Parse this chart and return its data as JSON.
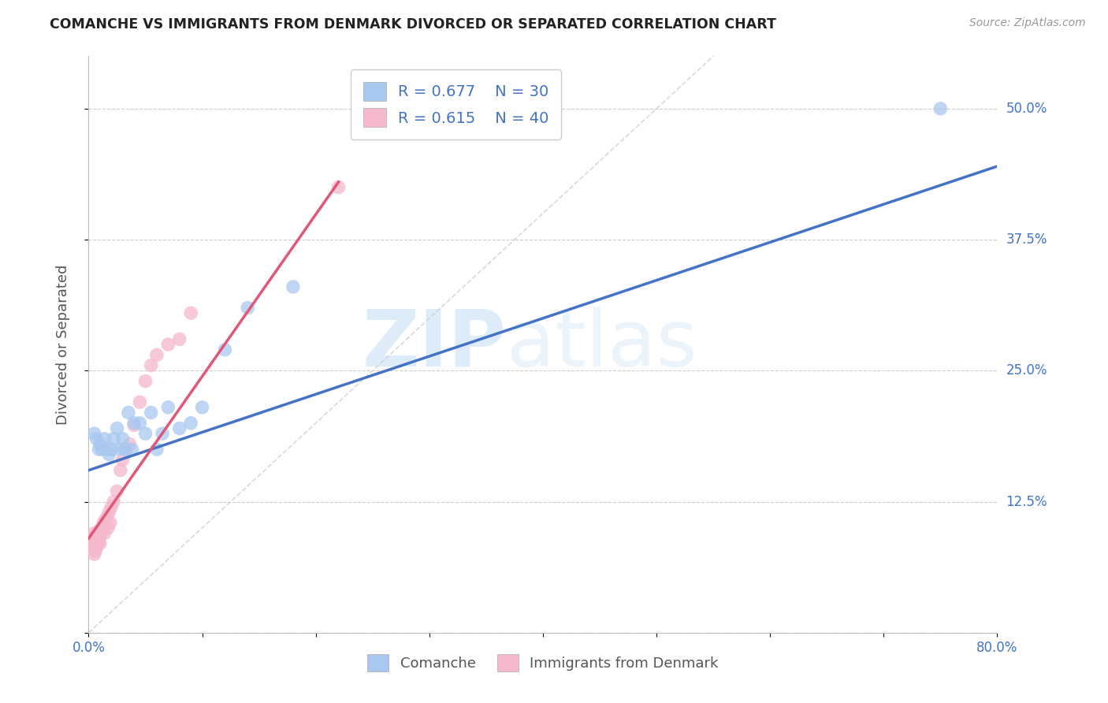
{
  "title": "COMANCHE VS IMMIGRANTS FROM DENMARK DIVORCED OR SEPARATED CORRELATION CHART",
  "source": "Source: ZipAtlas.com",
  "ylabel": "Divorced or Separated",
  "xlabel_comanche": "Comanche",
  "xlabel_denmark": "Immigrants from Denmark",
  "xlim": [
    0.0,
    0.8
  ],
  "ylim": [
    0.0,
    0.55
  ],
  "ytick_vals": [
    0.0,
    0.125,
    0.25,
    0.375,
    0.5
  ],
  "ytick_labels": [
    "",
    "12.5%",
    "25.0%",
    "37.5%",
    "50.0%"
  ],
  "xtick_vals": [
    0.0,
    0.1,
    0.2,
    0.3,
    0.4,
    0.5,
    0.6,
    0.7,
    0.8
  ],
  "xtick_labels": [
    "0.0%",
    "",
    "",
    "",
    "",
    "",
    "",
    "",
    "80.0%"
  ],
  "color_blue": "#A8C8F0",
  "color_pink": "#F5B8CC",
  "color_blue_line": "#4472C4",
  "color_pink_line": "#E05878",
  "color_diag": "#D0D0D0",
  "watermark_zip": "ZIP",
  "watermark_atlas": "atlas",
  "comanche_x": [
    0.005,
    0.007,
    0.009,
    0.01,
    0.012,
    0.014,
    0.016,
    0.018,
    0.02,
    0.022,
    0.025,
    0.028,
    0.03,
    0.032,
    0.035,
    0.038,
    0.04,
    0.045,
    0.05,
    0.055,
    0.06,
    0.065,
    0.07,
    0.08,
    0.09,
    0.1,
    0.12,
    0.14,
    0.18,
    0.75
  ],
  "comanche_y": [
    0.19,
    0.185,
    0.175,
    0.18,
    0.175,
    0.185,
    0.175,
    0.17,
    0.175,
    0.185,
    0.195,
    0.175,
    0.185,
    0.175,
    0.21,
    0.175,
    0.2,
    0.2,
    0.19,
    0.21,
    0.175,
    0.19,
    0.215,
    0.195,
    0.2,
    0.215,
    0.27,
    0.31,
    0.33,
    0.5
  ],
  "denmark_x": [
    0.002,
    0.003,
    0.004,
    0.005,
    0.005,
    0.006,
    0.006,
    0.007,
    0.007,
    0.008,
    0.008,
    0.009,
    0.009,
    0.01,
    0.01,
    0.011,
    0.012,
    0.013,
    0.014,
    0.015,
    0.016,
    0.017,
    0.018,
    0.019,
    0.02,
    0.022,
    0.025,
    0.028,
    0.03,
    0.033,
    0.036,
    0.04,
    0.045,
    0.05,
    0.055,
    0.06,
    0.07,
    0.08,
    0.09,
    0.22
  ],
  "denmark_y": [
    0.08,
    0.09,
    0.085,
    0.075,
    0.095,
    0.078,
    0.088,
    0.082,
    0.092,
    0.085,
    0.095,
    0.088,
    0.092,
    0.085,
    0.098,
    0.095,
    0.1,
    0.105,
    0.095,
    0.108,
    0.11,
    0.1,
    0.115,
    0.105,
    0.12,
    0.125,
    0.135,
    0.155,
    0.165,
    0.175,
    0.18,
    0.198,
    0.22,
    0.24,
    0.255,
    0.265,
    0.275,
    0.28,
    0.305,
    0.425
  ],
  "blue_line_x": [
    0.0,
    0.8
  ],
  "blue_line_y": [
    0.155,
    0.445
  ],
  "pink_line_x": [
    0.0,
    0.22
  ],
  "pink_line_y": [
    0.09,
    0.43
  ]
}
